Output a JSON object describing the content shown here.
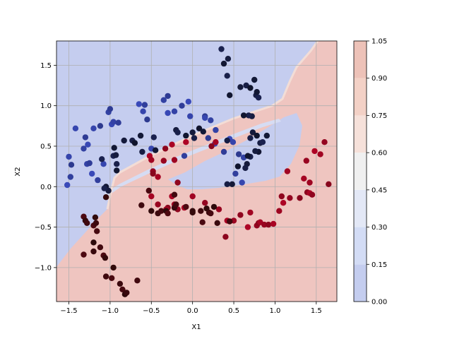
{
  "chart_data": {
    "type": "scatter",
    "title": "",
    "xlabel": "X1",
    "ylabel": "X2",
    "xlim": [
      -1.65,
      1.75
    ],
    "ylim": [
      -1.42,
      1.8
    ],
    "xticks": [
      "−1.5",
      "−1.0",
      "−0.5",
      "0.0",
      "0.5",
      "1.0",
      "1.5"
    ],
    "xtick_values": [
      -1.5,
      -1.0,
      -0.5,
      0.0,
      0.5,
      1.0,
      1.5
    ],
    "yticks": [
      "−1.0",
      "−0.5",
      "0.0",
      "0.5",
      "1.0",
      "1.5"
    ],
    "ytick_values": [
      -1.0,
      -0.5,
      0.0,
      0.5,
      1.0,
      1.5
    ],
    "grid": true,
    "background": "decision regions: upper-left region blue (class 0), lower-right region red (class 1), including a red wedge from (-0.9,-0.1) to (1.4,0.75) and an enclosed blue pocket around (0.4,0.45)",
    "colorbar": {
      "levels": [
        "0.00",
        "0.15",
        "0.30",
        "0.45",
        "0.60",
        "0.75",
        "0.90",
        "1.05"
      ],
      "level_values": [
        0.0,
        0.15,
        0.3,
        0.45,
        0.6,
        0.75,
        0.9,
        1.05
      ],
      "colors": [
        "#c4cdef",
        "#d3dcf5",
        "#e3e8f6",
        "#f0f0f0",
        "#f6e1da",
        "#f3d1c6",
        "#edc2b8"
      ]
    },
    "colors": {
      "region_class0": "#c5cdef",
      "region_class1": "#efc5c0",
      "class0_low": "#3b4cc0",
      "class0_high": "#0f1328",
      "class1_low": "#b40426",
      "class1_high": "#2a0a0a"
    },
    "series": [
      {
        "points": [
          [
            -1.52,
            0.02
          ],
          [
            -1.5,
            0.37
          ],
          [
            -1.48,
            0.12
          ],
          [
            -1.47,
            0.27
          ],
          [
            -1.42,
            0.72
          ],
          [
            -1.32,
            0.47
          ],
          [
            -1.3,
            0.61
          ],
          [
            -1.27,
            0.52
          ],
          [
            -1.28,
            0.28
          ],
          [
            -1.25,
            0.29
          ],
          [
            -1.22,
            0.16
          ],
          [
            -1.2,
            0.72
          ],
          [
            -1.15,
            0.08
          ],
          [
            -1.12,
            0.75
          ],
          [
            -1.08,
            0.28
          ],
          [
            -1.02,
            0.92
          ],
          [
            -1.0,
            0.96
          ],
          [
            -0.98,
            0.77
          ],
          [
            -0.96,
            0.8
          ],
          [
            -0.9,
            0.79
          ],
          [
            -0.65,
            1.02
          ],
          [
            -0.6,
            0.93
          ],
          [
            -0.58,
            1.01
          ],
          [
            -0.55,
            0.83
          ],
          [
            -0.5,
            0.47
          ],
          [
            -0.35,
            1.07
          ],
          [
            -0.3,
            1.12
          ],
          [
            -0.3,
            0.91
          ],
          [
            -0.22,
            0.93
          ],
          [
            -0.13,
            1.0
          ],
          [
            -0.05,
            1.05
          ],
          [
            -0.03,
            0.87
          ],
          [
            -0.1,
            0.38
          ],
          [
            0.15,
            0.87
          ],
          [
            0.15,
            0.85
          ],
          [
            0.22,
            0.82
          ],
          [
            0.19,
            0.6
          ],
          [
            0.27,
            0.53
          ],
          [
            0.28,
            0.7
          ],
          [
            0.38,
            0.43
          ],
          [
            0.45,
            0.59
          ],
          [
            0.49,
            0.55
          ],
          [
            0.52,
            0.16
          ],
          [
            0.56,
            0.4
          ],
          [
            0.6,
            0.05
          ],
          [
            0.62,
            0.36
          ]
        ],
        "shade": "low"
      },
      {
        "points": [
          [
            0.35,
            1.7
          ],
          [
            0.38,
            1.52
          ],
          [
            0.43,
            1.58
          ],
          [
            0.42,
            1.37
          ],
          [
            0.45,
            1.13
          ],
          [
            0.58,
            1.23
          ],
          [
            0.65,
            1.25
          ],
          [
            0.7,
            1.22
          ],
          [
            0.75,
            1.32
          ],
          [
            0.77,
            1.13
          ],
          [
            0.8,
            1.1
          ],
          [
            0.78,
            1.17
          ],
          [
            0.72,
            0.87
          ],
          [
            0.68,
            0.88
          ],
          [
            0.62,
            0.88
          ],
          [
            0.73,
            0.67
          ],
          [
            0.7,
            0.6
          ],
          [
            0.78,
            0.63
          ],
          [
            0.9,
            0.63
          ],
          [
            0.82,
            0.54
          ],
          [
            0.85,
            0.55
          ],
          [
            0.8,
            0.43
          ],
          [
            0.76,
            0.44
          ],
          [
            0.7,
            0.37
          ],
          [
            0.67,
            0.38
          ],
          [
            0.66,
            0.28
          ],
          [
            0.64,
            0.23
          ],
          [
            0.55,
            0.25
          ],
          [
            0.48,
            0.03
          ],
          [
            0.42,
            0.03
          ],
          [
            -0.96,
            0.38
          ],
          [
            -0.95,
            0.48
          ],
          [
            -0.93,
            0.39
          ],
          [
            -0.92,
            0.28
          ],
          [
            -0.92,
            0.2
          ],
          [
            -0.83,
            0.57
          ],
          [
            -0.73,
            0.57
          ],
          [
            -0.7,
            0.54
          ],
          [
            -0.63,
            0.63
          ],
          [
            -0.61,
            0.43
          ],
          [
            -0.47,
            0.61
          ],
          [
            -0.45,
            0.45
          ],
          [
            -0.2,
            0.7
          ],
          [
            -0.18,
            0.67
          ],
          [
            -0.08,
            0.63
          ],
          [
            0.0,
            0.67
          ],
          [
            0.02,
            0.6
          ],
          [
            0.08,
            0.72
          ],
          [
            0.13,
            0.68
          ],
          [
            0.42,
            0.57
          ],
          [
            -1.1,
            0.34
          ],
          [
            -1.05,
            0.0
          ],
          [
            -1.02,
            -0.05
          ],
          [
            -1.07,
            -0.02
          ]
        ],
        "shade": "high"
      },
      {
        "points": [
          [
            -0.52,
            0.38
          ],
          [
            -0.5,
            0.33
          ],
          [
            -0.48,
            0.19
          ],
          [
            -0.48,
            0.16
          ],
          [
            -0.42,
            0.12
          ],
          [
            -0.35,
            0.32
          ],
          [
            -0.33,
            0.47
          ],
          [
            -0.25,
            0.52
          ],
          [
            -0.22,
            0.33
          ],
          [
            -0.18,
            0.05
          ],
          [
            -0.08,
            0.55
          ],
          [
            0.0,
            -0.12
          ],
          [
            0.15,
            -0.2
          ],
          [
            0.23,
            0.5
          ],
          [
            0.28,
            0.55
          ],
          [
            0.32,
            -0.28
          ],
          [
            0.4,
            -0.62
          ],
          [
            0.42,
            -0.42
          ],
          [
            0.5,
            -0.42
          ],
          [
            0.58,
            -0.35
          ],
          [
            0.67,
            -0.5
          ],
          [
            0.7,
            -0.32
          ],
          [
            0.78,
            -0.48
          ],
          [
            0.8,
            -0.45
          ],
          [
            0.82,
            -0.44
          ],
          [
            0.87,
            -0.47
          ],
          [
            0.92,
            -0.47
          ],
          [
            0.98,
            -0.46
          ],
          [
            1.05,
            -0.3
          ],
          [
            1.08,
            -0.12
          ],
          [
            1.1,
            -0.2
          ],
          [
            1.15,
            0.19
          ],
          [
            1.18,
            -0.14
          ],
          [
            1.3,
            -0.14
          ],
          [
            1.35,
            0.1
          ],
          [
            1.38,
            0.32
          ],
          [
            1.39,
            -0.07
          ],
          [
            1.42,
            -0.08
          ],
          [
            1.42,
            0.05
          ],
          [
            1.45,
            -0.1
          ],
          [
            1.48,
            0.44
          ],
          [
            1.55,
            0.4
          ],
          [
            1.6,
            0.55
          ],
          [
            1.65,
            0.03
          ],
          [
            -0.5,
            -0.12
          ],
          [
            -0.42,
            -0.22
          ],
          [
            -0.3,
            -0.26
          ],
          [
            -0.25,
            -0.12
          ],
          [
            -0.22,
            -0.22
          ],
          [
            -0.18,
            -0.28
          ],
          [
            -0.1,
            -0.26
          ],
          [
            -0.32,
            -0.28
          ]
        ],
        "shade": "low"
      },
      {
        "points": [
          [
            -1.32,
            -0.37
          ],
          [
            -1.3,
            -0.42
          ],
          [
            -1.28,
            -0.45
          ],
          [
            -1.2,
            -0.48
          ],
          [
            -1.18,
            -0.38
          ],
          [
            -1.17,
            -0.45
          ],
          [
            -1.16,
            -0.55
          ],
          [
            -1.2,
            -0.69
          ],
          [
            -1.2,
            -0.8
          ],
          [
            -1.12,
            -0.75
          ],
          [
            -1.08,
            -0.85
          ],
          [
            -1.06,
            -0.88
          ],
          [
            -1.05,
            -1.11
          ],
          [
            -0.98,
            -1.13
          ],
          [
            -0.96,
            -1.0
          ],
          [
            -0.88,
            -1.2
          ],
          [
            -0.85,
            -1.27
          ],
          [
            -0.82,
            -1.33
          ],
          [
            -0.8,
            -1.31
          ],
          [
            -0.67,
            -1.16
          ],
          [
            -1.32,
            -0.84
          ],
          [
            -1.05,
            -0.13
          ],
          [
            -0.62,
            -0.23
          ],
          [
            -0.53,
            -0.05
          ],
          [
            -0.5,
            -0.3
          ],
          [
            -0.42,
            -0.33
          ],
          [
            -0.38,
            -0.3
          ],
          [
            -0.32,
            -0.3
          ],
          [
            -0.22,
            -0.26
          ],
          [
            -0.2,
            -0.22
          ],
          [
            -0.08,
            -0.25
          ],
          [
            0.0,
            -0.3
          ],
          [
            0.1,
            -0.3
          ],
          [
            0.12,
            -0.44
          ],
          [
            0.17,
            -0.27
          ],
          [
            0.2,
            -0.32
          ],
          [
            0.22,
            -0.33
          ],
          [
            0.26,
            -0.25
          ],
          [
            0.3,
            -0.45
          ],
          [
            -0.22,
            -0.1
          ],
          [
            -0.3,
            -0.33
          ],
          [
            0.0,
            -0.32
          ],
          [
            0.45,
            -0.43
          ]
        ],
        "shade": "high"
      }
    ]
  }
}
